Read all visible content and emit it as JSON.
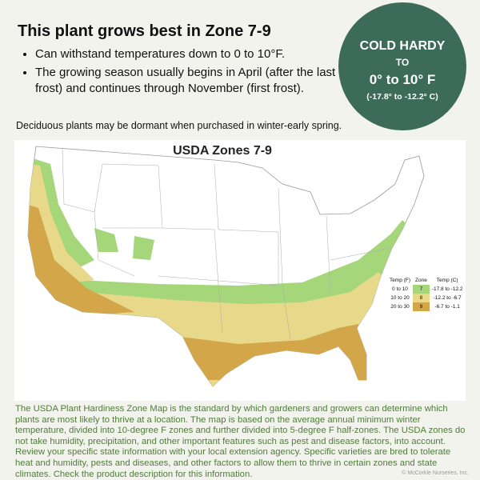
{
  "header": {
    "title": "This plant grows best in Zone 7-9",
    "bullets": [
      "Can withstand temperatures down to 0 to 10°F.",
      "The growing season usually begins in April (after the last frost) and continues through November (first frost)."
    ]
  },
  "badge": {
    "line1": "COLD HARDY",
    "line2": "TO",
    "line3": "0° to 10° F",
    "line4": "(-17.8° to -12.2° C)"
  },
  "note": "Deciduous plants may be dormant when purchased in winter-early spring.",
  "map": {
    "title": "USDA Zones 7-9",
    "legend": {
      "headers": [
        "Temp (F)",
        "Zone",
        "Temp (C)"
      ],
      "rows": [
        [
          "0 to 10",
          "7",
          "-17.8 to -12.2"
        ],
        [
          "10 to 20",
          "8",
          "-12.2 to -6.7"
        ],
        [
          "20 to 30",
          "9",
          "-6.7 to -1.1"
        ]
      ]
    }
  },
  "description": "The USDA Plant Hardiness Zone Map is the standard by which gardeners and growers can determine which plants are most likely to thrive at a location. The map is based on the average annual minimum winter temperature, divided into 10-degree F zones and further divided into 5-degree F half-zones. The USDA zones do not take humidity, precipitation, and other important features such as pest and disease factors, into account. Review your specific state information with your local extension agency. Specific varieties are bred to tolerate heat and humidity, pests and diseases, and other factors to allow them to thrive in certain zones and state climates. Check the product description for this information.",
  "copyright": "© McCorkle Nurseries, Inc."
}
